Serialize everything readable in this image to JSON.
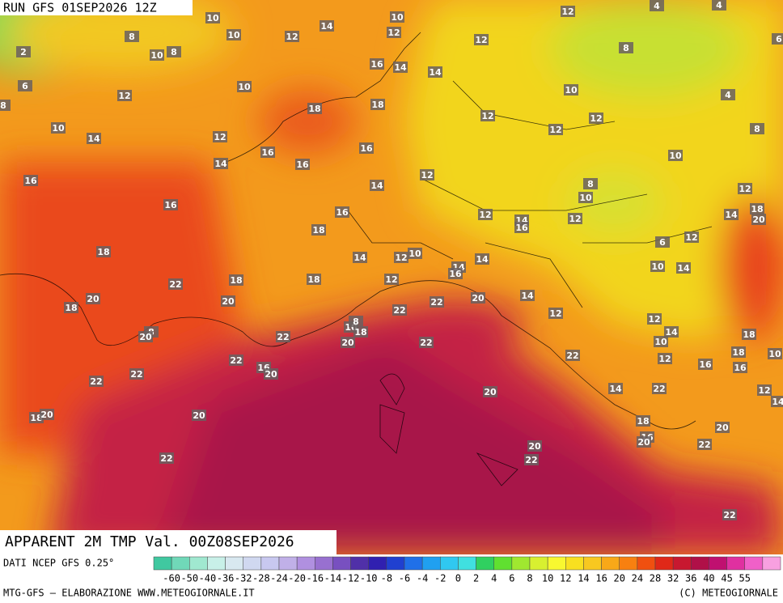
{
  "header": {
    "run": "RUN GFS 01SEP2026 12Z"
  },
  "map": {
    "title": "APPARENT 2M TMP Val. 00Z08SEP2026",
    "labels": [
      10,
      10,
      12,
      4,
      4,
      8,
      10,
      12,
      14,
      12,
      12,
      2,
      10,
      8,
      16,
      14,
      14,
      8,
      6,
      6,
      10,
      10,
      4,
      8,
      12,
      18,
      18,
      12,
      12,
      10,
      14,
      12,
      12,
      8,
      16,
      16,
      14,
      16,
      10,
      16,
      14,
      12,
      8,
      10,
      12,
      16,
      16,
      12,
      14,
      16,
      12,
      14,
      20,
      18,
      18,
      18,
      6,
      12,
      14,
      12,
      10,
      14,
      14,
      16,
      10,
      14,
      22,
      18,
      18,
      12,
      20,
      20,
      18,
      22,
      22,
      20,
      14,
      12,
      12,
      14,
      10,
      8,
      18,
      8,
      20,
      22,
      18,
      10,
      18,
      10,
      22,
      20,
      12,
      22,
      16,
      20,
      16,
      22,
      16,
      22,
      22,
      14,
      22,
      20,
      12,
      14,
      18,
      20,
      20,
      18,
      16,
      20,
      20,
      22,
      20,
      22,
      22,
      22
    ]
  },
  "legend": {
    "source": "DATI NCEP GFS 0.25°",
    "scale": [
      -60,
      -50,
      -40,
      -36,
      -32,
      -28,
      -24,
      -20,
      -16,
      -14,
      -12,
      -10,
      -8,
      -6,
      -4,
      -2,
      0,
      2,
      4,
      6,
      8,
      10,
      12,
      14,
      16,
      20,
      24,
      28,
      32,
      36,
      40,
      45,
      55
    ]
  },
  "footer": {
    "credit": "MTG-GFS – ELABORAZIONE WWW.METEOGIORNALE.IT",
    "copyright": "(C) METEOGIORNALE"
  }
}
